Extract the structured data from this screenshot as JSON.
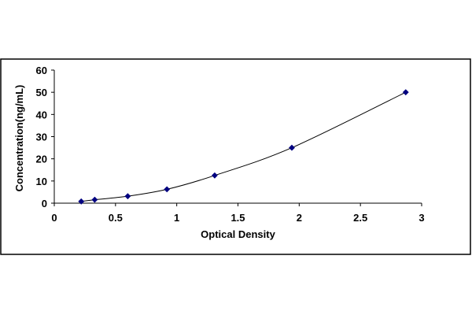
{
  "chart_data": {
    "type": "scatter",
    "title": "",
    "xlabel": "Optical Density",
    "ylabel": "Concentration(ng/mL)",
    "xlim": [
      0,
      3
    ],
    "ylim": [
      0,
      60
    ],
    "x_ticks": [
      "0",
      "0.5",
      "1",
      "1.5",
      "2",
      "2.5",
      "3"
    ],
    "y_ticks": [
      "0",
      "10",
      "20",
      "30",
      "40",
      "50",
      "60"
    ],
    "grid": false,
    "legend": "none",
    "trendline": "smooth polynomial curve through points",
    "series": [
      {
        "marker": "diamond",
        "color": "#000080",
        "points": [
          {
            "x": 0.22,
            "y": 0.78
          },
          {
            "x": 0.33,
            "y": 1.56
          },
          {
            "x": 0.6,
            "y": 3.13
          },
          {
            "x": 0.92,
            "y": 6.25
          },
          {
            "x": 1.31,
            "y": 12.5
          },
          {
            "x": 1.94,
            "y": 25
          },
          {
            "x": 2.87,
            "y": 50
          }
        ]
      }
    ],
    "colors": {
      "marker": "#000080",
      "line": "#000000",
      "frame": "#000000",
      "background": "#ffffff"
    }
  }
}
